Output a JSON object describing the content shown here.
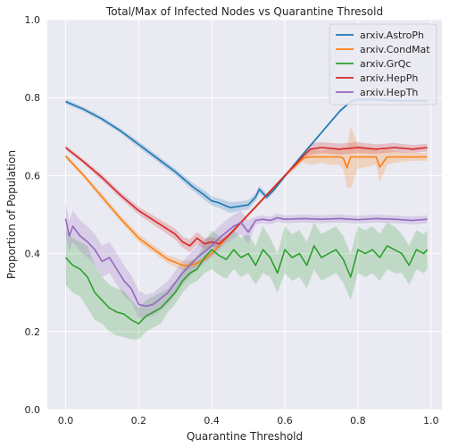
{
  "chart_data": {
    "type": "line",
    "title": "Total/Max of Infected Nodes vs Quarantine Thresold",
    "xlabel": "Quarantine Threshold",
    "ylabel": "Proportion of Population",
    "xlim": [
      -0.05,
      1.03
    ],
    "ylim": [
      0.0,
      1.0
    ],
    "xticks": [
      0.0,
      0.2,
      0.4,
      0.6,
      0.8,
      1.0
    ],
    "xtick_labels": [
      "0.0",
      "0.2",
      "0.4",
      "0.6",
      "0.8",
      "1.0"
    ],
    "yticks": [
      0.0,
      0.2,
      0.4,
      0.6,
      0.8,
      1.0
    ],
    "ytick_labels": [
      "0.0",
      "0.2",
      "0.4",
      "0.6",
      "0.8",
      "1.0"
    ],
    "grid": true,
    "legend_position": "top-right",
    "series": [
      {
        "name": "arxiv.AstroPh",
        "color": "#1f77b4",
        "x": [
          0.0,
          0.05,
          0.1,
          0.15,
          0.2,
          0.25,
          0.3,
          0.35,
          0.38,
          0.4,
          0.42,
          0.45,
          0.48,
          0.5,
          0.52,
          0.53,
          0.55,
          0.57,
          0.6,
          0.65,
          0.7,
          0.75,
          0.78,
          0.8,
          0.85,
          0.9,
          0.95,
          0.99
        ],
        "y": [
          0.79,
          0.77,
          0.745,
          0.715,
          0.68,
          0.645,
          0.61,
          0.57,
          0.55,
          0.535,
          0.53,
          0.518,
          0.522,
          0.525,
          0.545,
          0.565,
          0.545,
          0.563,
          0.598,
          0.655,
          0.71,
          0.765,
          0.79,
          0.795,
          0.795,
          0.792,
          0.792,
          0.792
        ],
        "band": [
          0.006,
          0.006,
          0.006,
          0.006,
          0.008,
          0.008,
          0.008,
          0.01,
          0.012,
          0.012,
          0.012,
          0.014,
          0.012,
          0.012,
          0.01,
          0.01,
          0.008,
          0.006,
          0.004,
          0.004,
          0.004,
          0.004,
          0.004,
          0.004,
          0.004,
          0.004,
          0.004,
          0.004
        ]
      },
      {
        "name": "arxiv.CondMat",
        "color": "#ff7f0e",
        "x": [
          0.0,
          0.05,
          0.1,
          0.15,
          0.2,
          0.25,
          0.28,
          0.3,
          0.32,
          0.34,
          0.36,
          0.38,
          0.4,
          0.45,
          0.5,
          0.55,
          0.6,
          0.65,
          0.67,
          0.7,
          0.72,
          0.75,
          0.76,
          0.77,
          0.78,
          0.8,
          0.85,
          0.86,
          0.88,
          0.9,
          0.95,
          0.99
        ],
        "y": [
          0.65,
          0.6,
          0.545,
          0.49,
          0.44,
          0.405,
          0.385,
          0.378,
          0.37,
          0.37,
          0.375,
          0.385,
          0.4,
          0.45,
          0.5,
          0.55,
          0.6,
          0.645,
          0.648,
          0.648,
          0.648,
          0.648,
          0.645,
          0.62,
          0.648,
          0.648,
          0.648,
          0.622,
          0.648,
          0.648,
          0.648,
          0.648
        ],
        "band": [
          0.006,
          0.006,
          0.008,
          0.008,
          0.01,
          0.01,
          0.01,
          0.012,
          0.012,
          0.012,
          0.008,
          0.004,
          0.004,
          0.004,
          0.004,
          0.004,
          0.004,
          0.01,
          0.02,
          0.015,
          0.02,
          0.02,
          0.03,
          0.05,
          0.08,
          0.03,
          0.02,
          0.04,
          0.02,
          0.015,
          0.01,
          0.01
        ]
      },
      {
        "name": "arxiv.GrQc",
        "color": "#2ca02c",
        "x": [
          0.0,
          0.02,
          0.04,
          0.06,
          0.08,
          0.1,
          0.12,
          0.14,
          0.16,
          0.18,
          0.2,
          0.22,
          0.24,
          0.26,
          0.28,
          0.3,
          0.32,
          0.34,
          0.36,
          0.38,
          0.4,
          0.42,
          0.44,
          0.46,
          0.48,
          0.5,
          0.52,
          0.54,
          0.56,
          0.58,
          0.6,
          0.62,
          0.64,
          0.66,
          0.68,
          0.7,
          0.72,
          0.74,
          0.76,
          0.78,
          0.8,
          0.82,
          0.84,
          0.86,
          0.88,
          0.9,
          0.92,
          0.94,
          0.96,
          0.98,
          0.99
        ],
        "y": [
          0.39,
          0.37,
          0.36,
          0.34,
          0.3,
          0.28,
          0.26,
          0.25,
          0.245,
          0.23,
          0.22,
          0.24,
          0.25,
          0.26,
          0.28,
          0.3,
          0.33,
          0.35,
          0.36,
          0.39,
          0.41,
          0.395,
          0.385,
          0.41,
          0.39,
          0.4,
          0.37,
          0.41,
          0.39,
          0.35,
          0.41,
          0.39,
          0.4,
          0.37,
          0.42,
          0.39,
          0.4,
          0.41,
          0.385,
          0.34,
          0.41,
          0.4,
          0.41,
          0.39,
          0.42,
          0.41,
          0.4,
          0.37,
          0.41,
          0.4,
          0.41
        ],
        "band": [
          0.07,
          0.07,
          0.07,
          0.08,
          0.07,
          0.06,
          0.06,
          0.06,
          0.06,
          0.05,
          0.04,
          0.04,
          0.04,
          0.04,
          0.03,
          0.03,
          0.03,
          0.03,
          0.03,
          0.04,
          0.05,
          0.05,
          0.05,
          0.05,
          0.05,
          0.05,
          0.05,
          0.06,
          0.05,
          0.05,
          0.06,
          0.06,
          0.06,
          0.06,
          0.06,
          0.06,
          0.06,
          0.06,
          0.06,
          0.06,
          0.06,
          0.06,
          0.06,
          0.06,
          0.06,
          0.06,
          0.05,
          0.05,
          0.05,
          0.05,
          0.05
        ]
      },
      {
        "name": "arxiv.HepPh",
        "color": "#d62728",
        "x": [
          0.0,
          0.05,
          0.1,
          0.15,
          0.2,
          0.25,
          0.3,
          0.32,
          0.34,
          0.36,
          0.38,
          0.4,
          0.42,
          0.45,
          0.5,
          0.55,
          0.6,
          0.65,
          0.67,
          0.7,
          0.75,
          0.8,
          0.85,
          0.9,
          0.95,
          0.99
        ],
        "y": [
          0.672,
          0.635,
          0.595,
          0.55,
          0.51,
          0.48,
          0.45,
          0.43,
          0.42,
          0.44,
          0.425,
          0.43,
          0.425,
          0.45,
          0.5,
          0.55,
          0.6,
          0.65,
          0.668,
          0.672,
          0.668,
          0.672,
          0.668,
          0.672,
          0.668,
          0.672
        ],
        "band": [
          0.006,
          0.006,
          0.008,
          0.008,
          0.01,
          0.012,
          0.014,
          0.014,
          0.016,
          0.016,
          0.014,
          0.012,
          0.01,
          0.006,
          0.004,
          0.004,
          0.004,
          0.01,
          0.014,
          0.014,
          0.014,
          0.014,
          0.012,
          0.012,
          0.01,
          0.01
        ]
      },
      {
        "name": "arxiv.HepTh",
        "color": "#9467bd",
        "x": [
          0.0,
          0.01,
          0.02,
          0.04,
          0.06,
          0.08,
          0.1,
          0.12,
          0.14,
          0.16,
          0.18,
          0.2,
          0.22,
          0.24,
          0.26,
          0.28,
          0.3,
          0.32,
          0.34,
          0.36,
          0.38,
          0.4,
          0.42,
          0.44,
          0.46,
          0.48,
          0.5,
          0.52,
          0.54,
          0.56,
          0.58,
          0.6,
          0.65,
          0.7,
          0.75,
          0.8,
          0.85,
          0.9,
          0.95,
          0.99
        ],
        "y": [
          0.49,
          0.445,
          0.47,
          0.445,
          0.43,
          0.41,
          0.38,
          0.39,
          0.36,
          0.33,
          0.31,
          0.27,
          0.265,
          0.27,
          0.285,
          0.3,
          0.325,
          0.35,
          0.37,
          0.39,
          0.405,
          0.42,
          0.44,
          0.455,
          0.47,
          0.48,
          0.455,
          0.485,
          0.488,
          0.485,
          0.492,
          0.488,
          0.49,
          0.488,
          0.49,
          0.487,
          0.49,
          0.488,
          0.485,
          0.488
        ],
        "band": [
          0.04,
          0.04,
          0.04,
          0.04,
          0.04,
          0.04,
          0.04,
          0.04,
          0.04,
          0.04,
          0.035,
          0.035,
          0.03,
          0.03,
          0.03,
          0.03,
          0.03,
          0.03,
          0.03,
          0.03,
          0.03,
          0.03,
          0.03,
          0.03,
          0.03,
          0.03,
          0.03,
          0.01,
          0.01,
          0.01,
          0.01,
          0.01,
          0.01,
          0.01,
          0.01,
          0.01,
          0.01,
          0.01,
          0.01,
          0.01
        ]
      }
    ]
  }
}
